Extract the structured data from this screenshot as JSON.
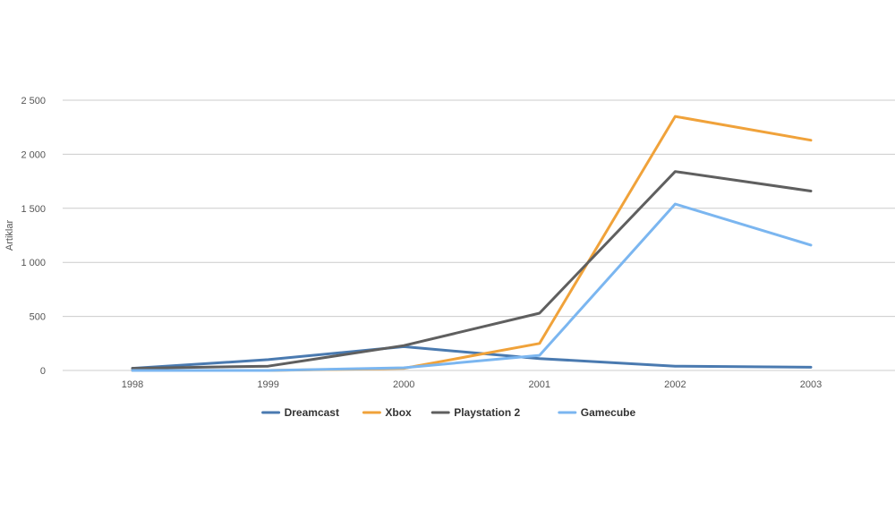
{
  "chart_data": {
    "type": "line",
    "title": "",
    "xlabel": "",
    "ylabel": "Artiklar",
    "categories": [
      "1998",
      "1999",
      "2000",
      "2001",
      "2002",
      "2003"
    ],
    "ylim": [
      0,
      2500
    ],
    "yticks": [
      0,
      500,
      1000,
      1500,
      2000,
      2500
    ],
    "ytick_labels": [
      "0",
      "500",
      "1 000",
      "1 500",
      "2 000",
      "2 500"
    ],
    "grid": true,
    "legend_position": "bottom",
    "series": [
      {
        "name": "Dreamcast",
        "color": "#4a7ab0",
        "values": [
          20,
          100,
          220,
          110,
          40,
          30
        ]
      },
      {
        "name": "Xbox",
        "color": "#f0a23a",
        "values": [
          0,
          0,
          20,
          250,
          2350,
          2130
        ]
      },
      {
        "name": "Playstation 2",
        "color": "#5f5f5f",
        "values": [
          20,
          40,
          230,
          530,
          1840,
          1660
        ]
      },
      {
        "name": "Gamecube",
        "color": "#7bb6f0",
        "values": [
          0,
          0,
          25,
          140,
          1540,
          1160
        ]
      }
    ]
  }
}
